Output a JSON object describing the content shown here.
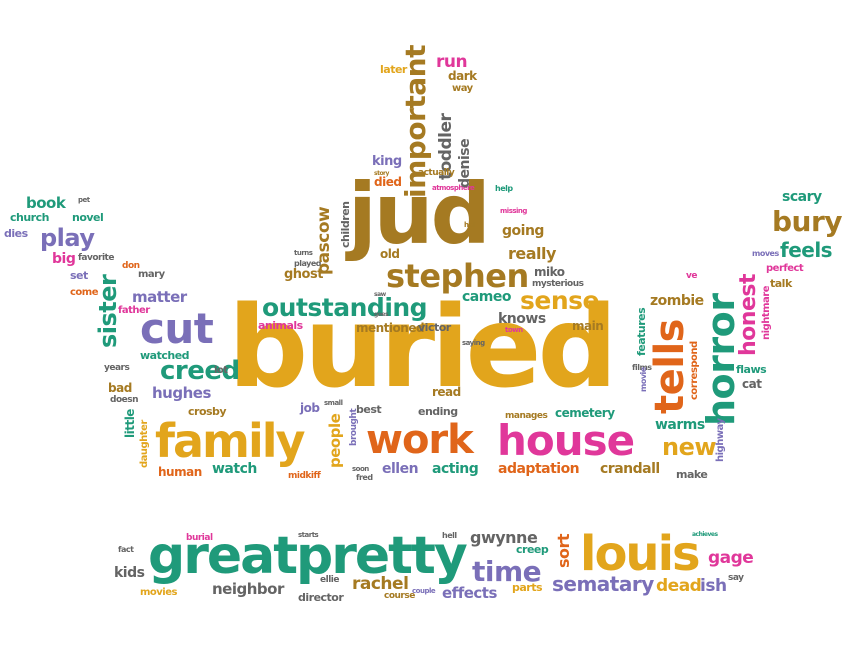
{
  "words": {
    "buried": "buried",
    "jud": "jud",
    "family": "family",
    "work": "work",
    "house": "house",
    "great": "great",
    "pretty": "pretty",
    "louis": "louis",
    "horror": "horror",
    "tells": "tells",
    "stephen": "stephen",
    "cut": "cut",
    "outstanding": "outstanding",
    "sense": "sense",
    "creed": "creed",
    "important": "important",
    "sister": "sister",
    "honest": "honest",
    "bury": "bury",
    "feels": "feels",
    "play": "play",
    "new": "new",
    "time": "time",
    "sematary": "sematary",
    "effects": "effects",
    "rachel": "rachel",
    "neighbor": "neighbor",
    "gage": "gage",
    "dead": "dead",
    "ish": "ish",
    "sort": "sort",
    "gwynne": "gwynne",
    "creep": "creep",
    "adaptation": "adaptation",
    "crandall": "crandall",
    "acting": "acting",
    "ellen": "ellen",
    "watch": "watch",
    "human": "human",
    "hughes": "hughes",
    "matter": "matter",
    "scary": "scary",
    "book": "book",
    "church": "church",
    "novel": "novel",
    "dies": "dies",
    "big": "big",
    "favorite": "favorite",
    "set": "set",
    "come": "come",
    "father": "father",
    "don": "don",
    "mary": "mary",
    "watched": "watched",
    "years": "years",
    "bad": "bad",
    "doesn": "doesn",
    "daughter": "daughter",
    "little": "little",
    "crosby": "crosby",
    "lot": "lot",
    "job": "job",
    "people": "people",
    "midkiff": "midkiff",
    "small": "small",
    "brought": "brought",
    "best": "best",
    "soon": "soon",
    "fred": "fred",
    "read": "read",
    "ending": "ending",
    "manages": "manages",
    "cemetery": "cemetery",
    "warms": "warms",
    "make": "make",
    "highway": "highway",
    "correspond": "correspond",
    "features": "features",
    "zombie": "zombie",
    "main": "main",
    "knows": "knows",
    "cameo": "cameo",
    "miko": "miko",
    "mysterious": "mysterious",
    "really": "really",
    "going": "going",
    "missing": "missing",
    "help": "help",
    "atmosphere": "atmosphere",
    "half": "half",
    "toddler": "toddler",
    "denise": "denise",
    "run": "run",
    "dark": "dark",
    "way": "way",
    "later": "later",
    "actually": "actually",
    "story": "story",
    "turns": "turns",
    "played": "played",
    "king": "king",
    "died": "died",
    "old": "old",
    "saw": "saw",
    "goes": "goes",
    "children": "children",
    "pascow": "pascow",
    "ghost": "ghost",
    "animals": "animals",
    "mentioned": "mentioned",
    "victor": "victor",
    "saying": "saying",
    "town": "town",
    "movies": "movies",
    "perfect": "perfect",
    "talk": "talk",
    "flaws": "flaws",
    "cat": "cat",
    "nightmare": "nightmare",
    "moves": "moves",
    "ve": "ve",
    "films": "films",
    "movie": "movie",
    "kids": "kids",
    "fact": "fact",
    "burial": "burial",
    "starts": "starts",
    "hell": "hell",
    "ellie": "ellie",
    "director": "director",
    "course": "course",
    "couple": "couple",
    "parts": "parts",
    "say": "say",
    "achieves": "achieves",
    "pet": "pet"
  },
  "colors": {
    "purple": "#7a6fb8",
    "green": "#1f9a7a",
    "gold": "#e2a51c",
    "brown": "#a57a22",
    "orange": "#e0651a",
    "pink": "#e0379a",
    "gray": "#646464"
  }
}
